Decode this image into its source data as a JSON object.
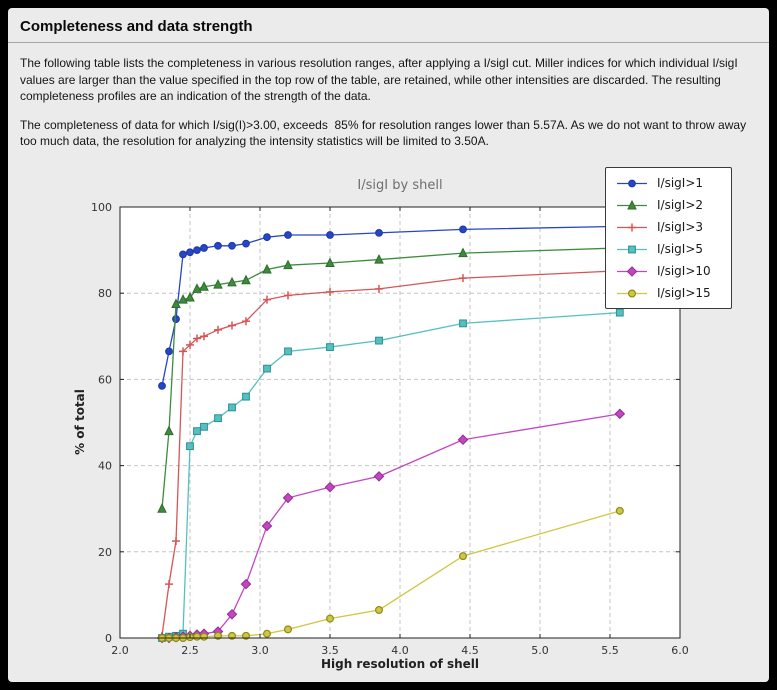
{
  "window": {
    "frame_color": "#000000",
    "panel_color": "#ebebeb"
  },
  "header": {
    "title": "Completeness and data strength"
  },
  "paragraphs": {
    "p1": "The following table lists the completeness in various resolution ranges, after applying a I/sigI cut. Miller indices for which individual I/sigI values are larger than the value specified in the top row of the table, are retained, while other intensities are discarded. The resulting completeness profiles are an indication of the strength of the data.",
    "p2": "The completeness of data for which I/sig(I)>3.00, exceeds  85% for resolution ranges lower than 5.57A. As we do not want to throw away too much data, the resolution for analyzing the intensity statistics will be limited to 3.50A."
  },
  "chart_data": {
    "type": "line",
    "title": "I/sigI by shell",
    "xlabel": "High resolution of shell",
    "ylabel": "% of total",
    "xlim": [
      2.0,
      6.0
    ],
    "ylim": [
      0,
      100
    ],
    "xticks": [
      2.0,
      2.5,
      3.0,
      3.5,
      4.0,
      4.5,
      5.0,
      5.5,
      6.0
    ],
    "yticks": [
      0,
      20,
      40,
      60,
      80,
      100
    ],
    "grid": true,
    "grid_style": "dashed",
    "legend_position": "upper right",
    "plot_bg": "#ffffff",
    "x": [
      2.3,
      2.35,
      2.4,
      2.45,
      2.5,
      2.55,
      2.6,
      2.7,
      2.8,
      2.9,
      3.05,
      3.2,
      3.5,
      3.85,
      4.45,
      5.57
    ],
    "series": [
      {
        "name": "I/sigI>1",
        "color": "#2646c8",
        "edge": "#1e37a3",
        "marker": "circle",
        "values": [
          58.5,
          66.5,
          74.0,
          89.0,
          89.5,
          90.0,
          90.5,
          91.0,
          91.0,
          91.5,
          93.0,
          93.5,
          93.5,
          94.0,
          94.8,
          95.5
        ]
      },
      {
        "name": "I/sigI>2",
        "color": "#3c8c3c",
        "edge": "#2e6b2e",
        "marker": "triangle",
        "values": [
          30.0,
          48.0,
          77.5,
          78.5,
          79.0,
          81.0,
          81.5,
          82.0,
          82.5,
          83.0,
          85.5,
          86.5,
          87.0,
          87.8,
          89.3,
          90.5
        ]
      },
      {
        "name": "I/sigI>3",
        "color": "#d85454",
        "edge": "#b03a3a",
        "marker": "plus",
        "values": [
          0.5,
          12.5,
          22.5,
          66.5,
          68.0,
          69.5,
          70.0,
          71.5,
          72.5,
          73.5,
          78.5,
          79.5,
          80.3,
          81.0,
          83.5,
          85.2
        ]
      },
      {
        "name": "I/sigI>5",
        "color": "#55c0c0",
        "edge": "#2e8f8f",
        "marker": "square",
        "values": [
          0.0,
          0.3,
          0.5,
          1.0,
          44.5,
          48.0,
          49.0,
          51.0,
          53.5,
          56.0,
          62.5,
          66.5,
          67.5,
          69.0,
          73.0,
          75.5
        ]
      },
      {
        "name": "I/sigI>10",
        "color": "#c445c4",
        "edge": "#8f2e8f",
        "marker": "diamond",
        "values": [
          0.0,
          0.0,
          0.2,
          0.3,
          0.5,
          0.8,
          1.0,
          1.5,
          5.5,
          12.5,
          26.0,
          32.5,
          35.0,
          37.5,
          46.0,
          52.0
        ]
      },
      {
        "name": "I/sigI>15",
        "color": "#cfc73d",
        "edge": "#8f8a20",
        "marker": "circle-open",
        "values": [
          0.0,
          0.0,
          0.0,
          0.0,
          0.2,
          0.3,
          0.3,
          0.5,
          0.5,
          0.5,
          1.0,
          2.0,
          4.5,
          6.5,
          19.0,
          29.5
        ]
      }
    ]
  }
}
